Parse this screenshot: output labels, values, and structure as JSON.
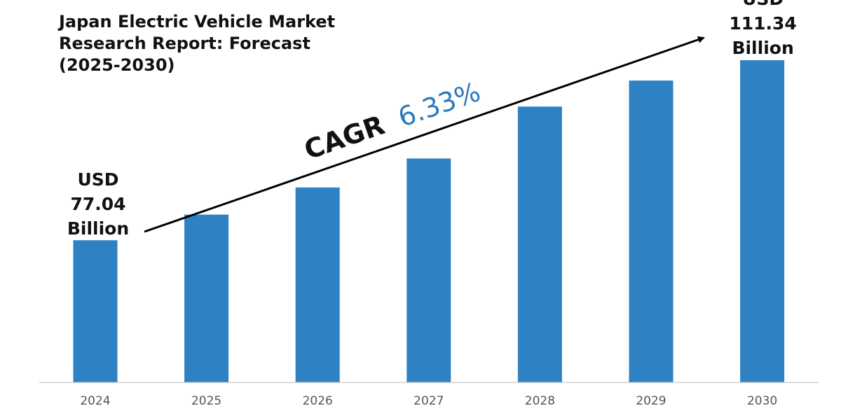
{
  "chart_data": {
    "type": "bar",
    "title_lines": [
      "Japan Electric Vehicle Market",
      "Research Report: Forecast",
      "(2025-2030)"
    ],
    "categories": [
      "2024",
      "2025",
      "2026",
      "2027",
      "2028",
      "2029",
      "2030"
    ],
    "values": [
      77.04,
      81.92,
      87.1,
      92.62,
      102.5,
      107.46,
      111.34
    ],
    "first_label": [
      "USD",
      "77.04",
      "Billion"
    ],
    "last_label": [
      "USD",
      "111.34",
      "Billion"
    ],
    "cagr": {
      "prefix": "CAGR",
      "value": "6.33%"
    },
    "ylim": [
      50,
      115
    ],
    "grid": false,
    "xlabel": "",
    "ylabel": ""
  },
  "colors": {
    "bar": "#2E81C3",
    "axis": "#D0D0D0",
    "tick_text": "#555555",
    "text": "#111111",
    "cagr_value": "#2E79BD",
    "arrow": "#000000"
  }
}
